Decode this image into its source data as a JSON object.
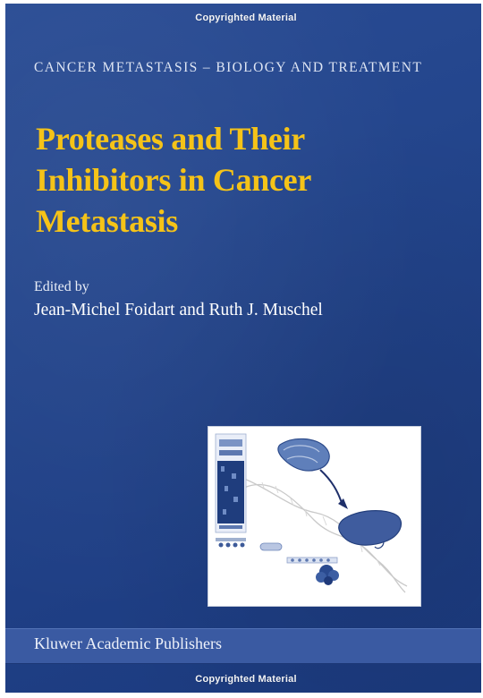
{
  "watermark": {
    "top": "Copyrighted Material",
    "bottom": "Copyrighted Material"
  },
  "series": "CANCER METASTASIS – BIOLOGY AND TREATMENT",
  "title_lines": [
    "Proteases and Their",
    "Inhibitors in Cancer",
    "Metastasis"
  ],
  "edited_by": "Edited by",
  "editors": "Jean-Michel Foidart and Ruth J. Muschel",
  "publisher": "Kluwer Academic Publishers",
  "colors": {
    "cover_blue": "#23458c",
    "title_yellow": "#f5c318",
    "publisher_band": "#3a5aa2"
  }
}
